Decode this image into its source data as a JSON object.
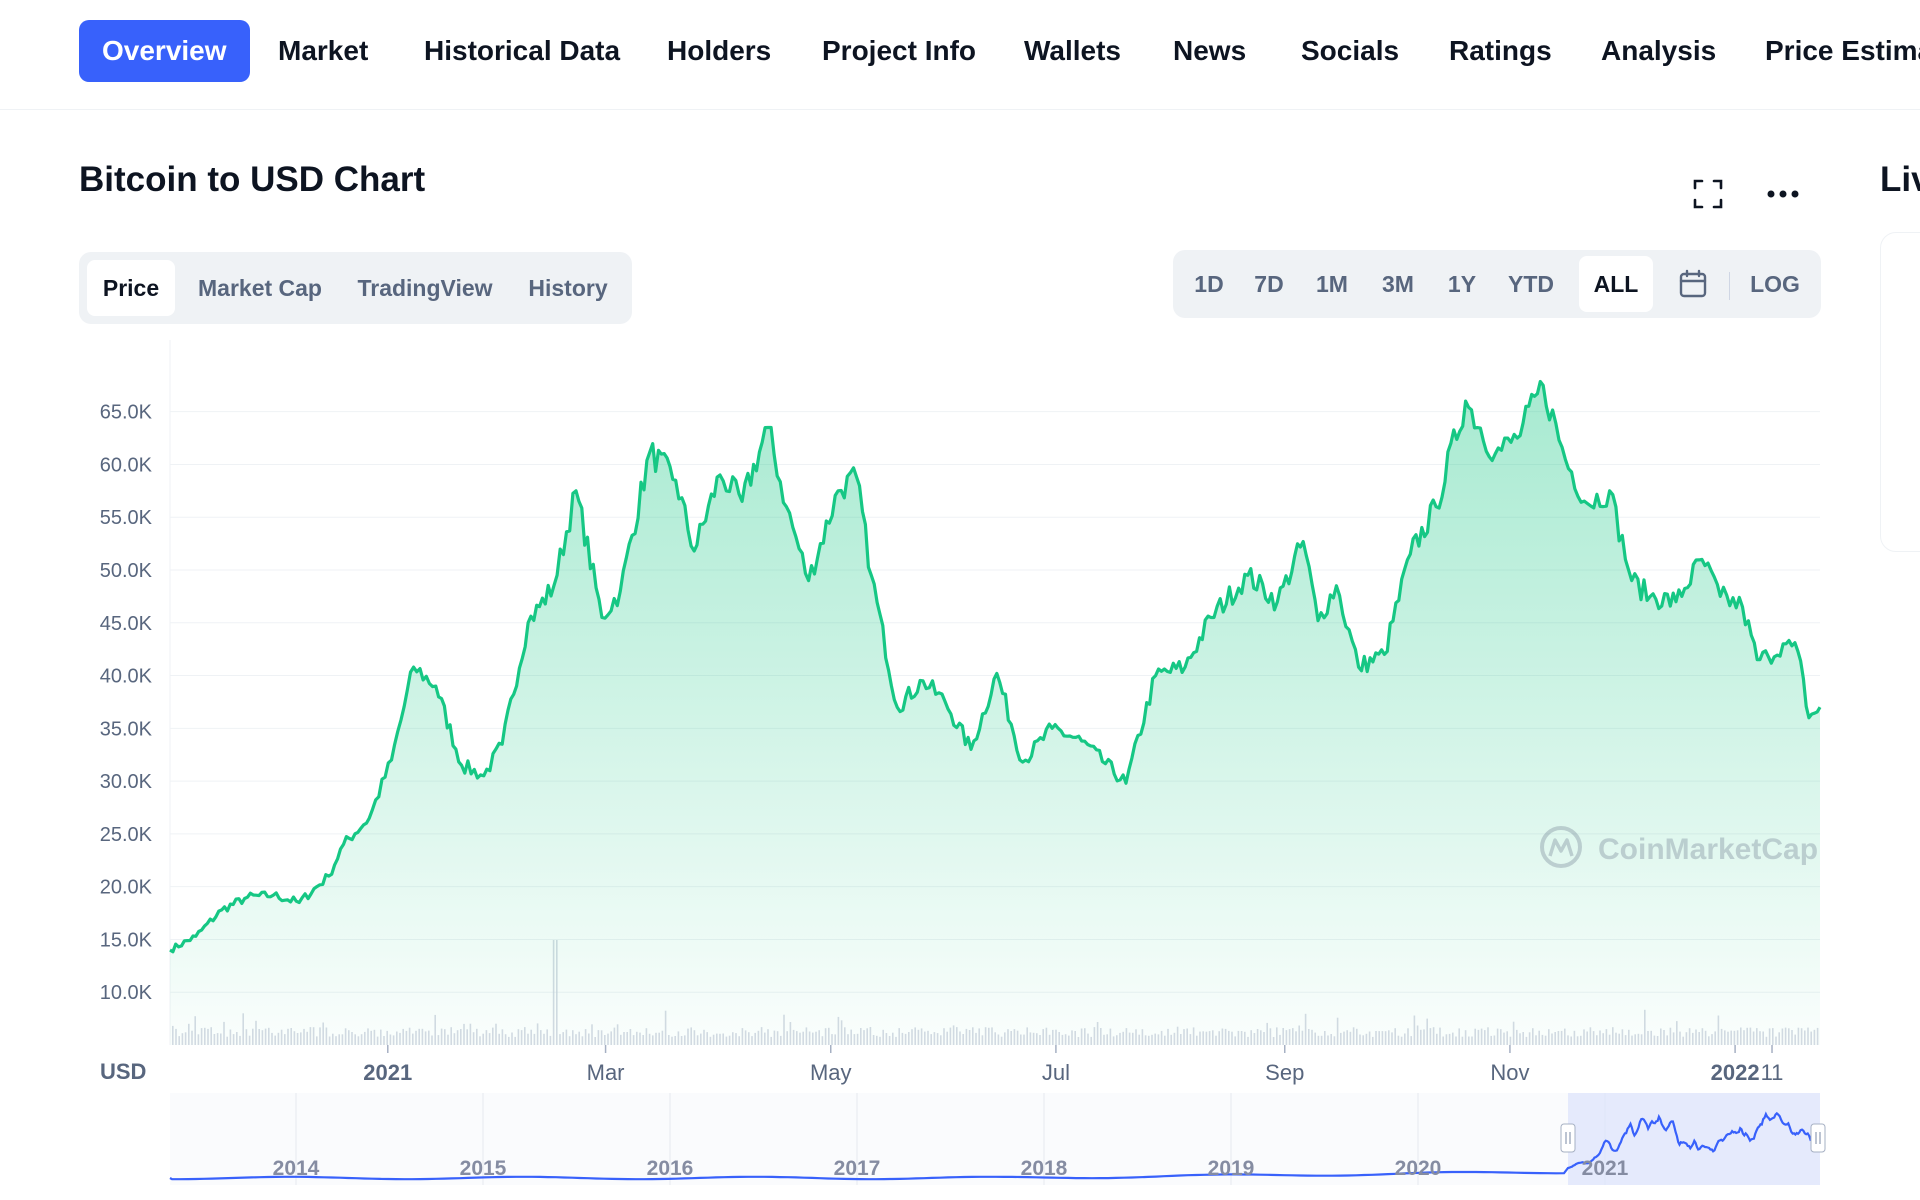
{
  "nav_tabs": [
    {
      "label": "Overview",
      "active": true
    },
    {
      "label": "Market"
    },
    {
      "label": "Historical Data"
    },
    {
      "label": "Holders"
    },
    {
      "label": "Project Info"
    },
    {
      "label": "Wallets"
    },
    {
      "label": "News"
    },
    {
      "label": "Socials"
    },
    {
      "label": "Ratings"
    },
    {
      "label": "Analysis"
    },
    {
      "label": "Price Estima"
    }
  ],
  "chart_title": "Bitcoin to USD Chart",
  "side_title": "Liv",
  "chart_tabs": {
    "items": [
      "Price",
      "Market Cap",
      "TradingView",
      "History"
    ],
    "active": "Price"
  },
  "ranges": {
    "items": [
      "1D",
      "7D",
      "1M",
      "3M",
      "1Y",
      "YTD",
      "ALL"
    ],
    "active": "ALL",
    "log_label": "LOG"
  },
  "icons": {
    "fullscreen": "fullscreen-icon",
    "more": "more-dots-icon",
    "calendar": "calendar-icon",
    "watermark": "coinmarketcap-logo-icon"
  },
  "watermark_text": "CoinMarketCap",
  "colors": {
    "accent": "#3861fb",
    "line": "#16c784",
    "navigator": "#3861fb",
    "text_secondary": "#58667e"
  },
  "chart_data": {
    "type": "area",
    "currency_label": "USD",
    "y_ticks": [
      "65.0K",
      "60.0K",
      "55.0K",
      "50.0K",
      "45.0K",
      "40.0K",
      "35.0K",
      "30.0K",
      "25.0K",
      "20.0K",
      "15.0K",
      "10.0K"
    ],
    "y_tick_values": [
      65000,
      60000,
      55000,
      50000,
      45000,
      40000,
      35000,
      30000,
      25000,
      20000,
      15000,
      10000
    ],
    "ylim": [
      5000,
      68000
    ],
    "x_ticks": [
      {
        "label": "2021",
        "date": "2021-01-01",
        "bold": true
      },
      {
        "label": "Mar",
        "date": "2021-03-01"
      },
      {
        "label": "May",
        "date": "2021-05-01"
      },
      {
        "label": "Jul",
        "date": "2021-07-01"
      },
      {
        "label": "Sep",
        "date": "2021-09-01"
      },
      {
        "label": "Nov",
        "date": "2021-11-01"
      },
      {
        "label": "2022",
        "date": "2022-01-01",
        "bold": true
      },
      {
        "label": "11",
        "date": "2022-01-11"
      }
    ],
    "x_range": [
      "2020-11-03",
      "2022-01-24"
    ],
    "series": [
      {
        "points": [
          [
            "2020-11-03",
            14000
          ],
          [
            "2020-11-10",
            15300
          ],
          [
            "2020-11-17",
            17800
          ],
          [
            "2020-11-24",
            19000
          ],
          [
            "2020-12-01",
            19200
          ],
          [
            "2020-12-08",
            18500
          ],
          [
            "2020-12-16",
            21000
          ],
          [
            "2020-12-20",
            24000
          ],
          [
            "2020-12-27",
            26500
          ],
          [
            "2021-01-02",
            32000
          ],
          [
            "2021-01-08",
            40800
          ],
          [
            "2021-01-14",
            39000
          ],
          [
            "2021-01-21",
            31500
          ],
          [
            "2021-01-27",
            30500
          ],
          [
            "2021-02-01",
            33500
          ],
          [
            "2021-02-08",
            45000
          ],
          [
            "2021-02-15",
            48500
          ],
          [
            "2021-02-21",
            57500
          ],
          [
            "2021-02-28",
            45500
          ],
          [
            "2021-03-05",
            48000
          ],
          [
            "2021-03-13",
            61200
          ],
          [
            "2021-03-20",
            58500
          ],
          [
            "2021-03-25",
            51800
          ],
          [
            "2021-04-01",
            59000
          ],
          [
            "2021-04-07",
            56500
          ],
          [
            "2021-04-14",
            63500
          ],
          [
            "2021-04-19",
            56000
          ],
          [
            "2021-04-25",
            49000
          ],
          [
            "2021-05-03",
            57500
          ],
          [
            "2021-05-08",
            58800
          ],
          [
            "2021-05-12",
            49500
          ],
          [
            "2021-05-19",
            37000
          ],
          [
            "2021-05-26",
            39500
          ],
          [
            "2021-06-01",
            37500
          ],
          [
            "2021-06-08",
            33000
          ],
          [
            "2021-06-15",
            40200
          ],
          [
            "2021-06-22",
            31800
          ],
          [
            "2021-06-30",
            35000
          ],
          [
            "2021-07-08",
            33800
          ],
          [
            "2021-07-20",
            29800
          ],
          [
            "2021-07-28",
            40000
          ],
          [
            "2021-08-05",
            40800
          ],
          [
            "2021-08-12",
            45500
          ],
          [
            "2021-08-22",
            49500
          ],
          [
            "2021-08-30",
            47000
          ],
          [
            "2021-09-06",
            52700
          ],
          [
            "2021-09-10",
            45200
          ],
          [
            "2021-09-15",
            48500
          ],
          [
            "2021-09-21",
            40800
          ],
          [
            "2021-09-28",
            42000
          ],
          [
            "2021-10-05",
            51500
          ],
          [
            "2021-10-12",
            56000
          ],
          [
            "2021-10-20",
            66000
          ],
          [
            "2021-10-28",
            61000
          ],
          [
            "2021-11-03",
            62500
          ],
          [
            "2021-11-10",
            67500
          ],
          [
            "2021-11-16",
            60500
          ],
          [
            "2021-11-22",
            56300
          ],
          [
            "2021-11-28",
            57500
          ],
          [
            "2021-12-04",
            49000
          ],
          [
            "2021-12-09",
            47500
          ],
          [
            "2021-12-16",
            47000
          ],
          [
            "2021-12-23",
            51000
          ],
          [
            "2021-12-28",
            47500
          ],
          [
            "2022-01-03",
            46500
          ],
          [
            "2022-01-07",
            41500
          ],
          [
            "2022-01-10",
            41800
          ],
          [
            "2022-01-14",
            43000
          ],
          [
            "2022-01-18",
            42300
          ],
          [
            "2022-01-21",
            36000
          ],
          [
            "2022-01-24",
            37000
          ]
        ]
      }
    ],
    "navigator": {
      "x_ticks": [
        "2014",
        "2015",
        "2016",
        "2017",
        "2018",
        "2019",
        "2020",
        "2021"
      ]
    }
  }
}
